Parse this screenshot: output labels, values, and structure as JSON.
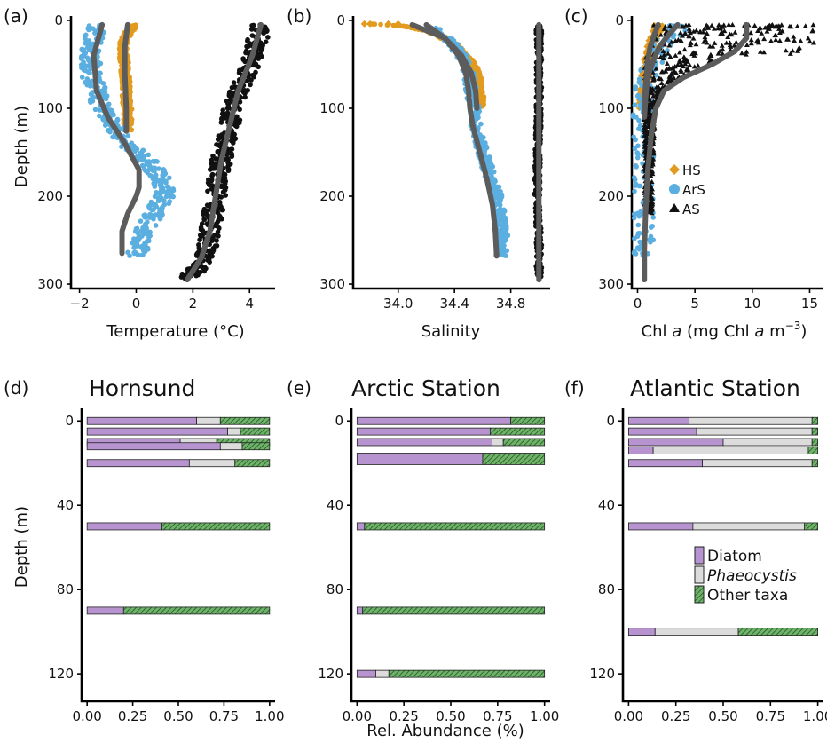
{
  "colors": {
    "HS": "#e29a1f",
    "ArS": "#5aaee0",
    "AS": "#111111",
    "mean_line": "#5c5c5c",
    "diatom": "#b794cf",
    "phaeocystis": "#dcdcdc",
    "other_taxa": "#6fb36a",
    "bar_outline": "#222222"
  },
  "chart_data": [
    {
      "id": "a",
      "panel_label": "(a)",
      "type": "line",
      "xlabel": "Temperature (°C)",
      "ylabel": "Depth (m)",
      "xlim": [
        -2.3,
        4.9
      ],
      "ylim": [
        305,
        -5
      ],
      "xticks": [
        -2,
        0,
        2,
        4
      ],
      "xtick_labels": [
        "−2",
        "0",
        "2",
        "4"
      ],
      "yticks": [
        0,
        100,
        200,
        300
      ],
      "ytick_labels": [
        "0",
        "100",
        "200",
        "300"
      ],
      "series": [
        {
          "name": "HS",
          "color": "HS",
          "spread": 0.15,
          "depth": [
            5,
            10,
            20,
            30,
            40,
            50,
            60,
            70,
            80,
            90,
            100,
            110,
            120,
            126
          ],
          "values": [
            0.0,
            -0.2,
            -0.4,
            -0.45,
            -0.45,
            -0.4,
            -0.4,
            -0.35,
            -0.35,
            -0.35,
            -0.3,
            -0.3,
            -0.3,
            -0.3
          ]
        },
        {
          "name": "ArS",
          "color": "ArS",
          "spread": 0.35,
          "depth": [
            5,
            10,
            20,
            40,
            60,
            80,
            100,
            120,
            140,
            160,
            180,
            190,
            200,
            220,
            240,
            260,
            268
          ],
          "values": [
            -1.3,
            -1.4,
            -1.5,
            -1.6,
            -1.6,
            -1.4,
            -1.2,
            -0.8,
            -0.3,
            0.4,
            0.9,
            1.0,
            1.0,
            0.6,
            0.3,
            0.1,
            0.0
          ]
        },
        {
          "name": "AS",
          "color": "AS",
          "spread": 0.35,
          "depth": [
            5,
            20,
            40,
            60,
            80,
            100,
            120,
            140,
            160,
            180,
            200,
            220,
            240,
            260,
            280,
            295
          ],
          "values": [
            4.4,
            4.3,
            4.1,
            3.9,
            3.6,
            3.4,
            3.3,
            3.1,
            3.0,
            2.9,
            2.8,
            2.7,
            2.6,
            2.5,
            2.2,
            1.8
          ]
        }
      ],
      "mean_lines": [
        {
          "name": "HS",
          "depth": [
            5,
            30,
            60,
            100,
            126
          ],
          "values": [
            -0.3,
            -0.4,
            -0.4,
            -0.35,
            -0.35
          ]
        },
        {
          "name": "ArS",
          "depth": [
            5,
            40,
            80,
            110,
            140,
            170,
            190,
            200,
            220,
            240,
            265
          ],
          "values": [
            -1.2,
            -1.5,
            -1.4,
            -1.0,
            -0.4,
            0.1,
            0.1,
            0.0,
            -0.3,
            -0.5,
            -0.5
          ]
        },
        {
          "name": "AS",
          "depth": [
            5,
            40,
            80,
            120,
            160,
            200,
            240,
            270,
            295
          ],
          "values": [
            4.4,
            4.1,
            3.6,
            3.3,
            3.0,
            2.8,
            2.6,
            2.3,
            1.8
          ]
        }
      ]
    },
    {
      "id": "b",
      "panel_label": "(b)",
      "type": "line",
      "xlabel": "Salinity",
      "ylabel": "",
      "xlim": [
        33.68,
        35.08
      ],
      "ylim": [
        305,
        -5
      ],
      "xticks": [
        34.0,
        34.4,
        34.8
      ],
      "xtick_labels": [
        "34.0",
        "34.4",
        "34.8"
      ],
      "yticks": [
        0,
        100,
        200,
        300
      ],
      "ytick_labels": [
        "0",
        "100",
        "200",
        "300"
      ],
      "series": [
        {
          "name": "HS",
          "color": "HS",
          "spread": 0.03,
          "depth": [
            4,
            5,
            8,
            12,
            18,
            25,
            35,
            45,
            55,
            65,
            75,
            85,
            95,
            100
          ],
          "values": [
            33.78,
            33.93,
            34.1,
            34.22,
            34.3,
            34.38,
            34.44,
            34.5,
            34.54,
            34.56,
            34.57,
            34.58,
            34.58,
            34.58
          ]
        },
        {
          "name": "ArS",
          "color": "ArS",
          "spread": 0.04,
          "depth": [
            8,
            20,
            40,
            60,
            80,
            100,
            120,
            140,
            160,
            180,
            200,
            220,
            240,
            260,
            268
          ],
          "values": [
            34.25,
            34.35,
            34.45,
            34.5,
            34.52,
            34.54,
            34.55,
            34.58,
            34.62,
            34.66,
            34.7,
            34.72,
            34.74,
            34.74,
            34.73
          ]
        },
        {
          "name": "AS",
          "color": "AS",
          "spread": 0.02,
          "depth": [
            5,
            50,
            100,
            150,
            200,
            250,
            295
          ],
          "values": [
            35.0,
            35.0,
            35.0,
            34.99,
            34.99,
            35.0,
            35.0
          ]
        }
      ],
      "mean_lines": [
        {
          "name": "HS",
          "depth": [
            5,
            20,
            40,
            60,
            80,
            100
          ],
          "values": [
            34.1,
            34.33,
            34.45,
            34.52,
            34.55,
            34.56
          ]
        },
        {
          "name": "ArS",
          "depth": [
            5,
            20,
            40,
            60,
            80,
            100,
            120,
            150,
            180,
            210,
            240,
            268
          ],
          "values": [
            34.2,
            34.33,
            34.43,
            34.48,
            34.5,
            34.51,
            34.53,
            34.58,
            34.63,
            34.67,
            34.69,
            34.7
          ]
        },
        {
          "name": "AS",
          "depth": [
            5,
            100,
            200,
            295
          ],
          "values": [
            35.0,
            35.0,
            35.0,
            35.0
          ]
        }
      ]
    },
    {
      "id": "c",
      "panel_label": "(c)",
      "type": "scatter",
      "xlabel": "Chl a (mg Chl a m−3)",
      "xlabel_parts": {
        "chl": "Chl ",
        "a1": "a",
        "unit_open": " (mg Chl ",
        "a2": "a",
        "unit_m": " m",
        "exp": "−3",
        "close": ")"
      },
      "ylabel": "",
      "xlim": [
        -0.5,
        16.2
      ],
      "ylim": [
        305,
        -5
      ],
      "xticks": [
        0,
        5,
        10,
        15
      ],
      "xtick_labels": [
        "0",
        "5",
        "10",
        "15"
      ],
      "yticks": [
        0,
        100,
        200,
        300
      ],
      "ytick_labels": [
        "0",
        "100",
        "200",
        "300"
      ],
      "legend": {
        "position": "center-left",
        "entries": [
          "HS",
          "ArS",
          "AS"
        ]
      },
      "series": [
        {
          "name": "HS",
          "color": "HS",
          "spread": 0.4,
          "depth": [
            5,
            10,
            20,
            30,
            40,
            50,
            60,
            70,
            80,
            90,
            100
          ],
          "values": [
            1.8,
            1.8,
            1.4,
            1.2,
            1.0,
            0.8,
            0.7,
            0.6,
            0.6,
            0.5,
            0.5
          ]
        },
        {
          "name": "ArS",
          "color": "ArS",
          "spread": 0.9,
          "depth": [
            5,
            10,
            20,
            30,
            40,
            50,
            60,
            70,
            80,
            100,
            130,
            160,
            200,
            240,
            270
          ],
          "values": [
            3.2,
            3.5,
            2.5,
            2.0,
            1.6,
            1.2,
            0.9,
            0.7,
            0.6,
            0.5,
            0.5,
            0.5,
            0.5,
            0.5,
            0.5
          ]
        },
        {
          "name": "AS",
          "color": "AS",
          "spread": 3.5,
          "depth": [
            5,
            10,
            20,
            30,
            40,
            50,
            60,
            70,
            80,
            90,
            100,
            110,
            130,
            150,
            170,
            190,
            210,
            220
          ],
          "values": [
            8.5,
            9.5,
            10.0,
            9.0,
            8.0,
            6.5,
            5.0,
            3.5,
            2.8,
            2.5,
            2.2,
            2.0,
            1.7,
            1.5,
            1.3,
            1.1,
            1.0,
            0.9
          ]
        }
      ],
      "mean_lines": [
        {
          "name": "HS",
          "depth": [
            5,
            15,
            30,
            45,
            60,
            75,
            90,
            100
          ],
          "values": [
            1.8,
            1.5,
            1.1,
            0.9,
            0.8,
            0.7,
            0.6,
            0.6
          ]
        },
        {
          "name": "ArS",
          "depth": [
            5,
            15,
            30,
            45,
            60,
            75,
            90,
            110
          ],
          "values": [
            3.5,
            2.8,
            1.9,
            1.4,
            1.0,
            0.8,
            0.7,
            0.6
          ]
        },
        {
          "name": "AS",
          "depth": [
            5,
            20,
            35,
            50,
            65,
            80,
            100,
            130,
            170,
            220,
            260,
            295
          ],
          "values": [
            9.5,
            9.5,
            8.5,
            6.5,
            4.0,
            2.3,
            1.6,
            1.2,
            0.9,
            0.7,
            0.6,
            0.6
          ]
        }
      ]
    },
    {
      "id": "d",
      "panel_label": "(d)",
      "title": "Hornsund",
      "type": "bar",
      "xlabel": "",
      "ylabel": "Depth (m)",
      "xlim": [
        -0.03,
        1.03
      ],
      "ylim": [
        133,
        -6
      ],
      "xticks": [
        0,
        0.25,
        0.5,
        0.75,
        1.0
      ],
      "xtick_labels": [
        "0.00",
        "0.25",
        "0.50",
        "0.75",
        "1.00"
      ],
      "yticks": [
        0,
        40,
        80,
        120
      ],
      "ytick_labels": [
        "0",
        "40",
        "80",
        "120"
      ],
      "bars": [
        {
          "depth": 0,
          "diatom": 0.6,
          "phaeocystis": 0.13,
          "other": 0.27
        },
        {
          "depth": 5,
          "diatom": 0.77,
          "phaeocystis": 0.07,
          "other": 0.16
        },
        {
          "depth": 10,
          "diatom": 0.51,
          "phaeocystis": 0.2,
          "other": 0.29
        },
        {
          "depth": 12,
          "diatom": 0.73,
          "phaeocystis": 0.12,
          "other": 0.15
        },
        {
          "depth": 20,
          "diatom": 0.56,
          "phaeocystis": 0.25,
          "other": 0.19
        },
        {
          "depth": 50,
          "diatom": 0.41,
          "phaeocystis": 0.0,
          "other": 0.59
        },
        {
          "depth": 90,
          "diatom": 0.2,
          "phaeocystis": 0.0,
          "other": 0.8
        }
      ]
    },
    {
      "id": "e",
      "panel_label": "(e)",
      "title": "Arctic Station",
      "type": "bar",
      "xlabel": "Rel. Abundance (%)",
      "ylabel": "",
      "xlim": [
        -0.03,
        1.03
      ],
      "ylim": [
        133,
        -6
      ],
      "xticks": [
        0,
        0.25,
        0.5,
        0.75,
        1.0
      ],
      "xtick_labels": [
        "0.00",
        "0.25",
        "0.50",
        "0.75",
        "1.00"
      ],
      "yticks": [
        0,
        40,
        80,
        120
      ],
      "ytick_labels": [
        "0",
        "40",
        "80",
        "120"
      ],
      "bars": [
        {
          "depth": 0,
          "diatom": 0.82,
          "phaeocystis": 0.0,
          "other": 0.18
        },
        {
          "depth": 5,
          "diatom": 0.71,
          "phaeocystis": 0.0,
          "other": 0.29
        },
        {
          "depth": 10,
          "diatom": 0.72,
          "phaeocystis": 0.06,
          "other": 0.22
        },
        {
          "depth": 18,
          "diatom": 0.67,
          "phaeocystis": 0.0,
          "other": 0.33,
          "thick": true
        },
        {
          "depth": 50,
          "diatom": 0.04,
          "phaeocystis": 0.0,
          "other": 0.96
        },
        {
          "depth": 90,
          "diatom": 0.03,
          "phaeocystis": 0.0,
          "other": 0.97
        },
        {
          "depth": 120,
          "diatom": 0.1,
          "phaeocystis": 0.07,
          "other": 0.83
        }
      ]
    },
    {
      "id": "f",
      "panel_label": "(f)",
      "title": "Atlantic Station",
      "type": "bar",
      "xlabel": "",
      "ylabel": "",
      "xlim": [
        -0.03,
        1.03
      ],
      "ylim": [
        133,
        -6
      ],
      "xticks": [
        0,
        0.25,
        0.5,
        0.75,
        1.0
      ],
      "xtick_labels": [
        "0.00",
        "0.25",
        "0.50",
        "0.75",
        "1.00"
      ],
      "yticks": [
        0,
        40,
        80,
        120
      ],
      "ytick_labels": [
        "0",
        "40",
        "80",
        "120"
      ],
      "legend": {
        "position": "right",
        "entries": [
          "Diatom",
          "Phaeocystis",
          "Other taxa"
        ]
      },
      "bars": [
        {
          "depth": 0,
          "diatom": 0.32,
          "phaeocystis": 0.65,
          "other": 0.03
        },
        {
          "depth": 5,
          "diatom": 0.36,
          "phaeocystis": 0.61,
          "other": 0.03
        },
        {
          "depth": 10,
          "diatom": 0.5,
          "phaeocystis": 0.47,
          "other": 0.03
        },
        {
          "depth": 14,
          "diatom": 0.13,
          "phaeocystis": 0.82,
          "other": 0.05
        },
        {
          "depth": 20,
          "diatom": 0.39,
          "phaeocystis": 0.58,
          "other": 0.03
        },
        {
          "depth": 50,
          "diatom": 0.34,
          "phaeocystis": 0.59,
          "other": 0.07
        },
        {
          "depth": 100,
          "diatom": 0.14,
          "phaeocystis": 0.44,
          "other": 0.42
        }
      ]
    }
  ]
}
